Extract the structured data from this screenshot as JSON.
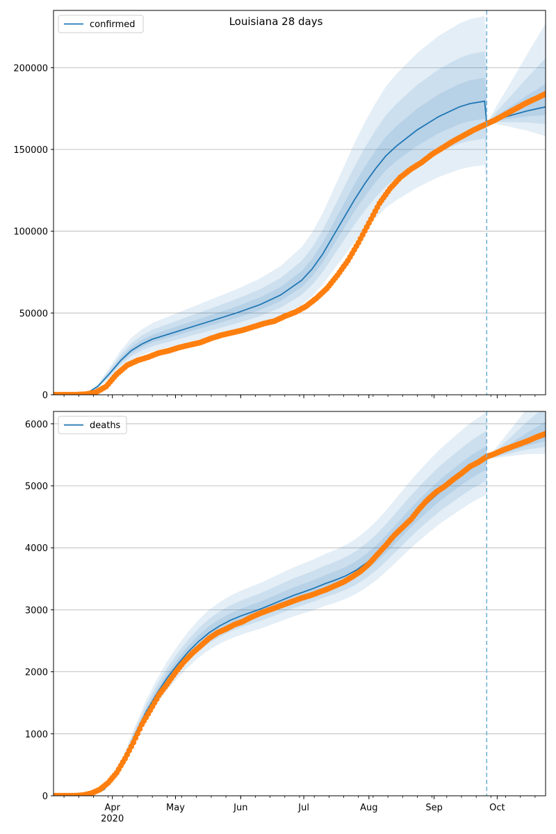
{
  "chart_data": {
    "title": "Louisiana 28 days",
    "type": "line",
    "x_tick_labels": [
      "Apr",
      "May",
      "Jun",
      "Jul",
      "Aug",
      "Sep",
      "Oct"
    ],
    "x_tick_dates": [
      "2020-04-01",
      "2020-05-01",
      "2020-06-01",
      "2020-07-01",
      "2020-08-01",
      "2020-09-01",
      "2020-10-01"
    ],
    "x_year_label": "2020",
    "x_range": [
      "2020-03-04",
      "2020-10-24"
    ],
    "forecast_start": "2020-09-26",
    "grid": "horizontal",
    "legend_position": "top-left",
    "colors": {
      "model": "#1f77b4",
      "observed": "#ff7f0e",
      "band": "#1f77b4",
      "forecast_line": "#6aaed6"
    },
    "panels": [
      {
        "legend_label": "confirmed",
        "ylim": [
          0,
          235000
        ],
        "y_ticks": [
          0,
          50000,
          100000,
          150000,
          200000
        ],
        "y_tick_labels": [
          "0",
          "50000",
          "100000",
          "150000",
          "200000"
        ],
        "model_line": {
          "x": [
            "2020-03-04",
            "2020-03-10",
            "2020-03-15",
            "2020-03-20",
            "2020-03-25",
            "2020-03-30",
            "2020-04-05",
            "2020-04-10",
            "2020-04-15",
            "2020-04-20",
            "2020-04-30",
            "2020-05-10",
            "2020-05-20",
            "2020-05-30",
            "2020-06-10",
            "2020-06-20",
            "2020-06-30",
            "2020-07-05",
            "2020-07-10",
            "2020-07-15",
            "2020-07-20",
            "2020-07-25",
            "2020-07-30",
            "2020-08-04",
            "2020-08-09",
            "2020-08-14",
            "2020-08-19",
            "2020-08-24",
            "2020-08-29",
            "2020-09-03",
            "2020-09-08",
            "2020-09-13",
            "2020-09-18",
            "2020-09-25",
            "2020-09-26",
            "2020-10-01",
            "2020-10-08",
            "2020-10-15",
            "2020-10-24"
          ],
          "y": [
            0,
            0,
            0,
            1000,
            5000,
            12000,
            21000,
            27000,
            31000,
            34000,
            38000,
            42000,
            46000,
            50000,
            55000,
            61000,
            70000,
            77000,
            86000,
            97000,
            108000,
            119000,
            129000,
            138000,
            146000,
            152000,
            157000,
            162000,
            166000,
            170000,
            173000,
            176000,
            178000,
            179500,
            166000,
            168500,
            171000,
            173500,
            176000
          ]
        },
        "band_halfwidth_fraction": [
          0.08,
          0.17,
          0.29
        ],
        "observed": {
          "x": [
            "2020-03-04",
            "2020-03-09",
            "2020-03-14",
            "2020-03-19",
            "2020-03-24",
            "2020-03-29",
            "2020-04-03",
            "2020-04-08",
            "2020-04-13",
            "2020-04-18",
            "2020-04-23",
            "2020-04-28",
            "2020-05-03",
            "2020-05-08",
            "2020-05-13",
            "2020-05-18",
            "2020-05-23",
            "2020-05-28",
            "2020-06-02",
            "2020-06-07",
            "2020-06-12",
            "2020-06-17",
            "2020-06-22",
            "2020-06-27",
            "2020-07-02",
            "2020-07-07",
            "2020-07-12",
            "2020-07-17",
            "2020-07-22",
            "2020-07-27",
            "2020-08-01",
            "2020-08-06",
            "2020-08-11",
            "2020-08-16",
            "2020-08-21",
            "2020-08-26",
            "2020-08-31",
            "2020-09-05",
            "2020-09-10",
            "2020-09-15",
            "2020-09-20",
            "2020-09-25",
            "2020-09-30",
            "2020-10-05",
            "2020-10-10",
            "2020-10-15",
            "2020-10-20",
            "2020-10-24"
          ],
          "y": [
            0,
            0,
            0,
            300,
            1400,
            5000,
            12500,
            18000,
            21000,
            23000,
            25500,
            27000,
            29000,
            30500,
            32000,
            34500,
            36500,
            38000,
            39500,
            41500,
            43500,
            45000,
            48000,
            50500,
            54000,
            59000,
            65000,
            73000,
            82000,
            93000,
            105000,
            117000,
            126000,
            133000,
            138000,
            142000,
            147000,
            151000,
            155000,
            158500,
            162000,
            165000,
            168000,
            171500,
            175000,
            178500,
            181500,
            184000
          ]
        }
      },
      {
        "legend_label": "deaths",
        "ylim": [
          0,
          6200
        ],
        "y_ticks": [
          0,
          1000,
          2000,
          3000,
          4000,
          5000,
          6000
        ],
        "y_tick_labels": [
          "0",
          "1000",
          "2000",
          "3000",
          "4000",
          "5000",
          "6000"
        ],
        "model_line": {
          "x": [
            "2020-03-04",
            "2020-03-18",
            "2020-03-23",
            "2020-03-28",
            "2020-04-02",
            "2020-04-07",
            "2020-04-12",
            "2020-04-17",
            "2020-04-22",
            "2020-04-27",
            "2020-05-02",
            "2020-05-07",
            "2020-05-12",
            "2020-05-17",
            "2020-05-22",
            "2020-05-27",
            "2020-06-01",
            "2020-06-06",
            "2020-06-11",
            "2020-06-16",
            "2020-06-21",
            "2020-06-26",
            "2020-07-01",
            "2020-07-06",
            "2020-07-11",
            "2020-07-16",
            "2020-07-21",
            "2020-07-26",
            "2020-07-31",
            "2020-08-05",
            "2020-08-10",
            "2020-08-15",
            "2020-08-20",
            "2020-08-25",
            "2020-08-30",
            "2020-09-04",
            "2020-09-09",
            "2020-09-14",
            "2020-09-19",
            "2020-09-26",
            "2020-10-01",
            "2020-10-08",
            "2020-10-15",
            "2020-10-24"
          ],
          "y": [
            0,
            0,
            20,
            100,
            290,
            620,
            1000,
            1350,
            1640,
            1900,
            2120,
            2320,
            2490,
            2630,
            2740,
            2830,
            2900,
            2960,
            3020,
            3090,
            3160,
            3230,
            3290,
            3350,
            3420,
            3480,
            3550,
            3640,
            3760,
            3900,
            4070,
            4250,
            4430,
            4600,
            4760,
            4910,
            5040,
            5170,
            5290,
            5430,
            5500,
            5600,
            5700,
            5800
          ]
        },
        "band_halfwidth_fraction": [
          0.04,
          0.085,
          0.14
        ],
        "observed": {
          "x": [
            "2020-03-04",
            "2020-03-09",
            "2020-03-14",
            "2020-03-18",
            "2020-03-22",
            "2020-03-26",
            "2020-03-30",
            "2020-04-03",
            "2020-04-07",
            "2020-04-11",
            "2020-04-15",
            "2020-04-19",
            "2020-04-23",
            "2020-04-27",
            "2020-05-01",
            "2020-05-05",
            "2020-05-09",
            "2020-05-13",
            "2020-05-17",
            "2020-05-21",
            "2020-05-25",
            "2020-05-29",
            "2020-06-02",
            "2020-06-06",
            "2020-06-10",
            "2020-06-14",
            "2020-06-18",
            "2020-06-22",
            "2020-06-26",
            "2020-06-30",
            "2020-07-04",
            "2020-07-08",
            "2020-07-12",
            "2020-07-16",
            "2020-07-20",
            "2020-07-24",
            "2020-07-28",
            "2020-08-01",
            "2020-08-05",
            "2020-08-09",
            "2020-08-13",
            "2020-08-17",
            "2020-08-21",
            "2020-08-25",
            "2020-08-29",
            "2020-09-02",
            "2020-09-06",
            "2020-09-10",
            "2020-09-14",
            "2020-09-18",
            "2020-09-22",
            "2020-09-26",
            "2020-09-30",
            "2020-10-04",
            "2020-10-08",
            "2020-10-12",
            "2020-10-16",
            "2020-10-20",
            "2020-10-24"
          ],
          "y": [
            0,
            0,
            0,
            10,
            40,
            100,
            210,
            370,
            600,
            860,
            1150,
            1380,
            1620,
            1800,
            1990,
            2160,
            2300,
            2420,
            2540,
            2630,
            2690,
            2760,
            2810,
            2880,
            2940,
            2990,
            3040,
            3090,
            3140,
            3190,
            3230,
            3280,
            3330,
            3390,
            3450,
            3530,
            3620,
            3740,
            3890,
            4040,
            4200,
            4330,
            4460,
            4630,
            4780,
            4900,
            4990,
            5100,
            5200,
            5310,
            5380,
            5470,
            5520,
            5580,
            5630,
            5680,
            5730,
            5790,
            5840
          ]
        }
      }
    ]
  }
}
